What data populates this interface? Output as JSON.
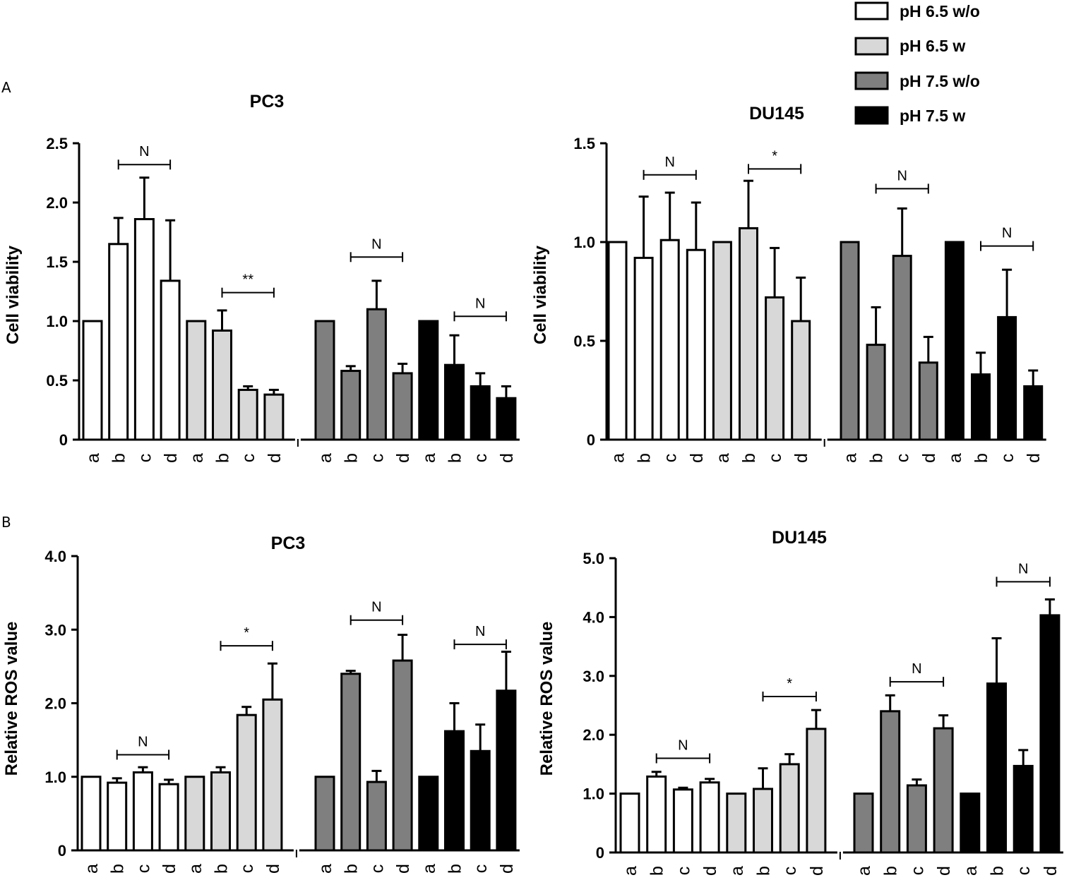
{
  "panels": [
    {
      "label": "A"
    },
    {
      "label": "B"
    }
  ],
  "legend": {
    "items": [
      {
        "label": "pH 6.5 w/o",
        "color": "#ffffff"
      },
      {
        "label": "pH 6.5 w",
        "color": "#d8d8d8"
      },
      {
        "label": "pH 7.5 w/o",
        "color": "#7f7f7f"
      },
      {
        "label": "pH 7.5 w",
        "color": "#000000"
      }
    ]
  },
  "chart_data": [
    {
      "type": "bar",
      "panel": "A",
      "title": "PC3",
      "ylabel": "Cell viability",
      "ylim": [
        0,
        2.5
      ],
      "yticks": [
        {
          "value": 0,
          "label": "0"
        },
        {
          "value": 0.5,
          "label": "0.5"
        },
        {
          "value": 1.0,
          "label": "1.0"
        },
        {
          "value": 1.5,
          "label": "1.5"
        },
        {
          "value": 2.0,
          "label": "2.0"
        },
        {
          "value": 2.5,
          "label": "2.5"
        }
      ],
      "categories": [
        "a",
        "b",
        "c",
        "d"
      ],
      "series": [
        {
          "name": "pH 6.5 w/o",
          "values": [
            1.0,
            1.65,
            1.86,
            1.34
          ],
          "errors": [
            0,
            0.22,
            0.35,
            0.51
          ]
        },
        {
          "name": "pH 6.5 w",
          "values": [
            1.0,
            0.92,
            0.42,
            0.38
          ],
          "errors": [
            0,
            0.17,
            0.03,
            0.04
          ]
        },
        {
          "name": "pH 7.5 w/o",
          "values": [
            1.0,
            0.58,
            1.1,
            0.56
          ],
          "errors": [
            0,
            0.04,
            0.24,
            0.08
          ]
        },
        {
          "name": "pH 7.5 w",
          "values": [
            1.0,
            0.63,
            0.45,
            0.35
          ],
          "errors": [
            0,
            0.25,
            0.11,
            0.1
          ]
        }
      ],
      "significance": [
        {
          "series": 0,
          "from": 1,
          "to": 3,
          "label": "N",
          "level": 2.32
        },
        {
          "series": 1,
          "from": 1,
          "to": 3,
          "label": "**",
          "level": 1.24
        },
        {
          "series": 2,
          "from": 1,
          "to": 3,
          "label": "N",
          "level": 1.54
        },
        {
          "series": 3,
          "from": 1,
          "to": 3,
          "label": "N",
          "level": 1.04
        }
      ]
    },
    {
      "type": "bar",
      "panel": "A",
      "title": "DU145",
      "ylabel": "Cell viability",
      "ylim": [
        0,
        1.5
      ],
      "yticks": [
        {
          "value": 0,
          "label": "0"
        },
        {
          "value": 0.5,
          "label": "0.5"
        },
        {
          "value": 1.0,
          "label": "1.0"
        },
        {
          "value": 1.5,
          "label": "1.5"
        }
      ],
      "categories": [
        "a",
        "b",
        "c",
        "d"
      ],
      "series": [
        {
          "name": "pH 6.5 w/o",
          "values": [
            1.0,
            0.92,
            1.01,
            0.96
          ],
          "errors": [
            0,
            0.31,
            0.24,
            0.24
          ]
        },
        {
          "name": "pH 6.5 w",
          "values": [
            1.0,
            1.07,
            0.72,
            0.6
          ],
          "errors": [
            0,
            0.24,
            0.25,
            0.22
          ]
        },
        {
          "name": "pH 7.5 w/o",
          "values": [
            1.0,
            0.48,
            0.93,
            0.39
          ],
          "errors": [
            0,
            0.19,
            0.24,
            0.13
          ]
        },
        {
          "name": "pH 7.5 w",
          "values": [
            1.0,
            0.33,
            0.62,
            0.27
          ],
          "errors": [
            0,
            0.11,
            0.24,
            0.08
          ]
        }
      ],
      "significance": [
        {
          "series": 0,
          "from": 1,
          "to": 3,
          "label": "N",
          "level": 1.34
        },
        {
          "series": 1,
          "from": 1,
          "to": 3,
          "label": "*",
          "level": 1.37
        },
        {
          "series": 2,
          "from": 1,
          "to": 3,
          "label": "N",
          "level": 1.27
        },
        {
          "series": 3,
          "from": 1,
          "to": 3,
          "label": "N",
          "level": 0.98
        }
      ]
    },
    {
      "type": "bar",
      "panel": "B",
      "title": "PC3",
      "ylabel": "Relative ROS value",
      "ylim": [
        0,
        4.0
      ],
      "yticks": [
        {
          "value": 0,
          "label": "0"
        },
        {
          "value": 1.0,
          "label": "1.0"
        },
        {
          "value": 2.0,
          "label": "2.0"
        },
        {
          "value": 3.0,
          "label": "3.0"
        },
        {
          "value": 4.0,
          "label": "4.0"
        }
      ],
      "categories": [
        "a",
        "b",
        "c",
        "d"
      ],
      "series": [
        {
          "name": "pH 6.5 w/o",
          "values": [
            1.0,
            0.92,
            1.06,
            0.9
          ],
          "errors": [
            0,
            0.06,
            0.07,
            0.06
          ]
        },
        {
          "name": "pH 6.5 w",
          "values": [
            1.0,
            1.06,
            1.84,
            2.05
          ],
          "errors": [
            0,
            0.07,
            0.11,
            0.49
          ]
        },
        {
          "name": "pH 7.5 w/o",
          "values": [
            1.0,
            2.4,
            0.93,
            2.58
          ],
          "errors": [
            0,
            0.04,
            0.15,
            0.35
          ]
        },
        {
          "name": "pH 7.5 w",
          "values": [
            1.0,
            1.62,
            1.35,
            2.17
          ],
          "errors": [
            0,
            0.38,
            0.36,
            0.53
          ]
        }
      ],
      "significance": [
        {
          "series": 0,
          "from": 1,
          "to": 3,
          "label": "N",
          "level": 1.3
        },
        {
          "series": 1,
          "from": 1,
          "to": 3,
          "label": "*",
          "level": 2.78
        },
        {
          "series": 2,
          "from": 1,
          "to": 3,
          "label": "N",
          "level": 3.13
        },
        {
          "series": 3,
          "from": 1,
          "to": 3,
          "label": "N",
          "level": 2.8
        }
      ]
    },
    {
      "type": "bar",
      "panel": "B",
      "title": "DU145",
      "ylabel": "Relative ROS value",
      "ylim": [
        0,
        5.0
      ],
      "yticks": [
        {
          "value": 0,
          "label": "0"
        },
        {
          "value": 1.0,
          "label": "1.0"
        },
        {
          "value": 2.0,
          "label": "2.0"
        },
        {
          "value": 3.0,
          "label": "3.0"
        },
        {
          "value": 4.0,
          "label": "4.0"
        },
        {
          "value": 5.0,
          "label": "5.0"
        }
      ],
      "categories": [
        "a",
        "b",
        "c",
        "d"
      ],
      "series": [
        {
          "name": "pH 6.5 w/o",
          "values": [
            1.0,
            1.29,
            1.07,
            1.19
          ],
          "errors": [
            0,
            0.08,
            0.03,
            0.06
          ]
        },
        {
          "name": "pH 6.5 w",
          "values": [
            1.0,
            1.08,
            1.5,
            2.1
          ],
          "errors": [
            0,
            0.35,
            0.17,
            0.32
          ]
        },
        {
          "name": "pH 7.5 w/o",
          "values": [
            1.0,
            2.4,
            1.14,
            2.11
          ],
          "errors": [
            0,
            0.27,
            0.1,
            0.22
          ]
        },
        {
          "name": "pH 7.5 w",
          "values": [
            1.0,
            2.87,
            1.47,
            4.03
          ],
          "errors": [
            0,
            0.77,
            0.27,
            0.27
          ]
        }
      ],
      "significance": [
        {
          "series": 0,
          "from": 1,
          "to": 3,
          "label": "N",
          "level": 1.6
        },
        {
          "series": 1,
          "from": 1,
          "to": 3,
          "label": "*",
          "level": 2.65
        },
        {
          "series": 2,
          "from": 1,
          "to": 3,
          "label": "N",
          "level": 2.9
        },
        {
          "series": 3,
          "from": 1,
          "to": 3,
          "label": "N",
          "level": 4.6
        }
      ]
    }
  ]
}
